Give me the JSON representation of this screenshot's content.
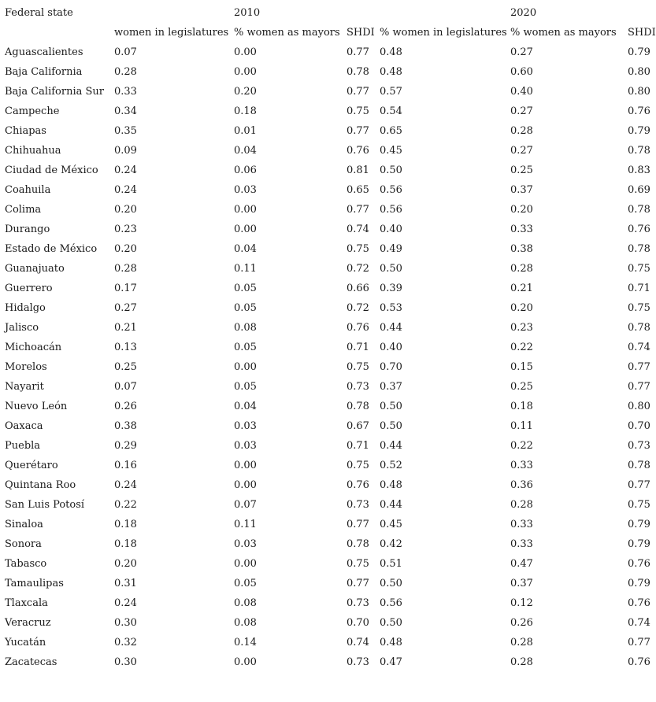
{
  "chart_data": {
    "type": "table",
    "state_header": "Federal state",
    "year_headers": [
      "2010",
      "2020"
    ],
    "sub_headers": [
      "women in legislatures",
      "% women as mayors",
      "SHDI",
      "% women in legislatures",
      "% women as mayors",
      "SHDI"
    ],
    "rows": [
      {
        "state": "Aguascalientes",
        "values": [
          "0.07",
          "0.00",
          "0.77",
          "0.48",
          "0.27",
          "0.79"
        ]
      },
      {
        "state": "Baja California",
        "values": [
          "0.28",
          "0.00",
          "0.78",
          "0.48",
          "0.60",
          "0.80"
        ]
      },
      {
        "state": "Baja California Sur",
        "values": [
          "0.33",
          "0.20",
          "0.77",
          "0.57",
          "0.40",
          "0.80"
        ]
      },
      {
        "state": "Campeche",
        "values": [
          "0.34",
          "0.18",
          "0.75",
          "0.54",
          "0.27",
          "0.76"
        ]
      },
      {
        "state": "Chiapas",
        "values": [
          "0.35",
          "0.01",
          "0.77",
          "0.65",
          "0.28",
          "0.79"
        ]
      },
      {
        "state": "Chihuahua",
        "values": [
          "0.09",
          "0.04",
          "0.76",
          "0.45",
          "0.27",
          "0.78"
        ]
      },
      {
        "state": "Ciudad de México",
        "values": [
          "0.24",
          "0.06",
          "0.81",
          "0.50",
          "0.25",
          "0.83"
        ]
      },
      {
        "state": "Coahuila",
        "values": [
          "0.24",
          "0.03",
          "0.65",
          "0.56",
          "0.37",
          "0.69"
        ]
      },
      {
        "state": "Colima",
        "values": [
          "0.20",
          "0.00",
          "0.77",
          "0.56",
          "0.20",
          "0.78"
        ]
      },
      {
        "state": "Durango",
        "values": [
          "0.23",
          "0.00",
          "0.74",
          "0.40",
          "0.33",
          "0.76"
        ]
      },
      {
        "state": "Estado de México",
        "values": [
          "0.20",
          "0.04",
          "0.75",
          "0.49",
          "0.38",
          "0.78"
        ]
      },
      {
        "state": "Guanajuato",
        "values": [
          "0.28",
          "0.11",
          "0.72",
          "0.50",
          "0.28",
          "0.75"
        ]
      },
      {
        "state": "Guerrero",
        "values": [
          "0.17",
          "0.05",
          "0.66",
          "0.39",
          "0.21",
          "0.71"
        ]
      },
      {
        "state": "Hidalgo",
        "values": [
          "0.27",
          "0.05",
          "0.72",
          "0.53",
          "0.20",
          "0.75"
        ]
      },
      {
        "state": "Jalisco",
        "values": [
          "0.21",
          "0.08",
          "0.76",
          "0.44",
          "0.23",
          "0.78"
        ]
      },
      {
        "state": "Michoacán",
        "values": [
          "0.13",
          "0.05",
          "0.71",
          "0.40",
          "0.22",
          "0.74"
        ]
      },
      {
        "state": "Morelos",
        "values": [
          "0.25",
          "0.00",
          "0.75",
          "0.70",
          "0.15",
          "0.77"
        ]
      },
      {
        "state": "Nayarit",
        "values": [
          "0.07",
          "0.05",
          "0.73",
          "0.37",
          "0.25",
          "0.77"
        ]
      },
      {
        "state": "Nuevo León",
        "values": [
          "0.26",
          "0.04",
          "0.78",
          "0.50",
          "0.18",
          "0.80"
        ]
      },
      {
        "state": "Oaxaca",
        "values": [
          "0.38",
          "0.03",
          "0.67",
          "0.50",
          "0.11",
          "0.70"
        ]
      },
      {
        "state": "Puebla",
        "values": [
          "0.29",
          "0.03",
          "0.71",
          "0.44",
          "0.22",
          "0.73"
        ]
      },
      {
        "state": "Querétaro",
        "values": [
          "0.16",
          "0.00",
          "0.75",
          "0.52",
          "0.33",
          "0.78"
        ]
      },
      {
        "state": "Quintana Roo",
        "values": [
          "0.24",
          "0.00",
          "0.76",
          "0.48",
          "0.36",
          "0.77"
        ]
      },
      {
        "state": "San Luis Potosí",
        "values": [
          "0.22",
          "0.07",
          "0.73",
          "0.44",
          "0.28",
          "0.75"
        ]
      },
      {
        "state": "Sinaloa",
        "values": [
          "0.18",
          "0.11",
          "0.77",
          "0.45",
          "0.33",
          "0.79"
        ]
      },
      {
        "state": "Sonora",
        "values": [
          "0.18",
          "0.03",
          "0.78",
          "0.42",
          "0.33",
          "0.79"
        ]
      },
      {
        "state": "Tabasco",
        "values": [
          "0.20",
          "0.00",
          "0.75",
          "0.51",
          "0.47",
          "0.76"
        ]
      },
      {
        "state": "Tamaulipas",
        "values": [
          "0.31",
          "0.05",
          "0.77",
          "0.50",
          "0.37",
          "0.79"
        ]
      },
      {
        "state": "Tlaxcala",
        "values": [
          "0.24",
          "0.08",
          "0.73",
          "0.56",
          "0.12",
          "0.76"
        ]
      },
      {
        "state": "Veracruz",
        "values": [
          "0.30",
          "0.08",
          "0.70",
          "0.50",
          "0.26",
          "0.74"
        ]
      },
      {
        "state": "Yucatán",
        "values": [
          "0.32",
          "0.14",
          "0.74",
          "0.48",
          "0.28",
          "0.77"
        ]
      },
      {
        "state": "Zacatecas",
        "values": [
          "0.30",
          "0.00",
          "0.73",
          "0.47",
          "0.28",
          "0.76"
        ]
      }
    ]
  },
  "colors": {
    "text": "#1a1a1a",
    "background": "#ffffff"
  }
}
